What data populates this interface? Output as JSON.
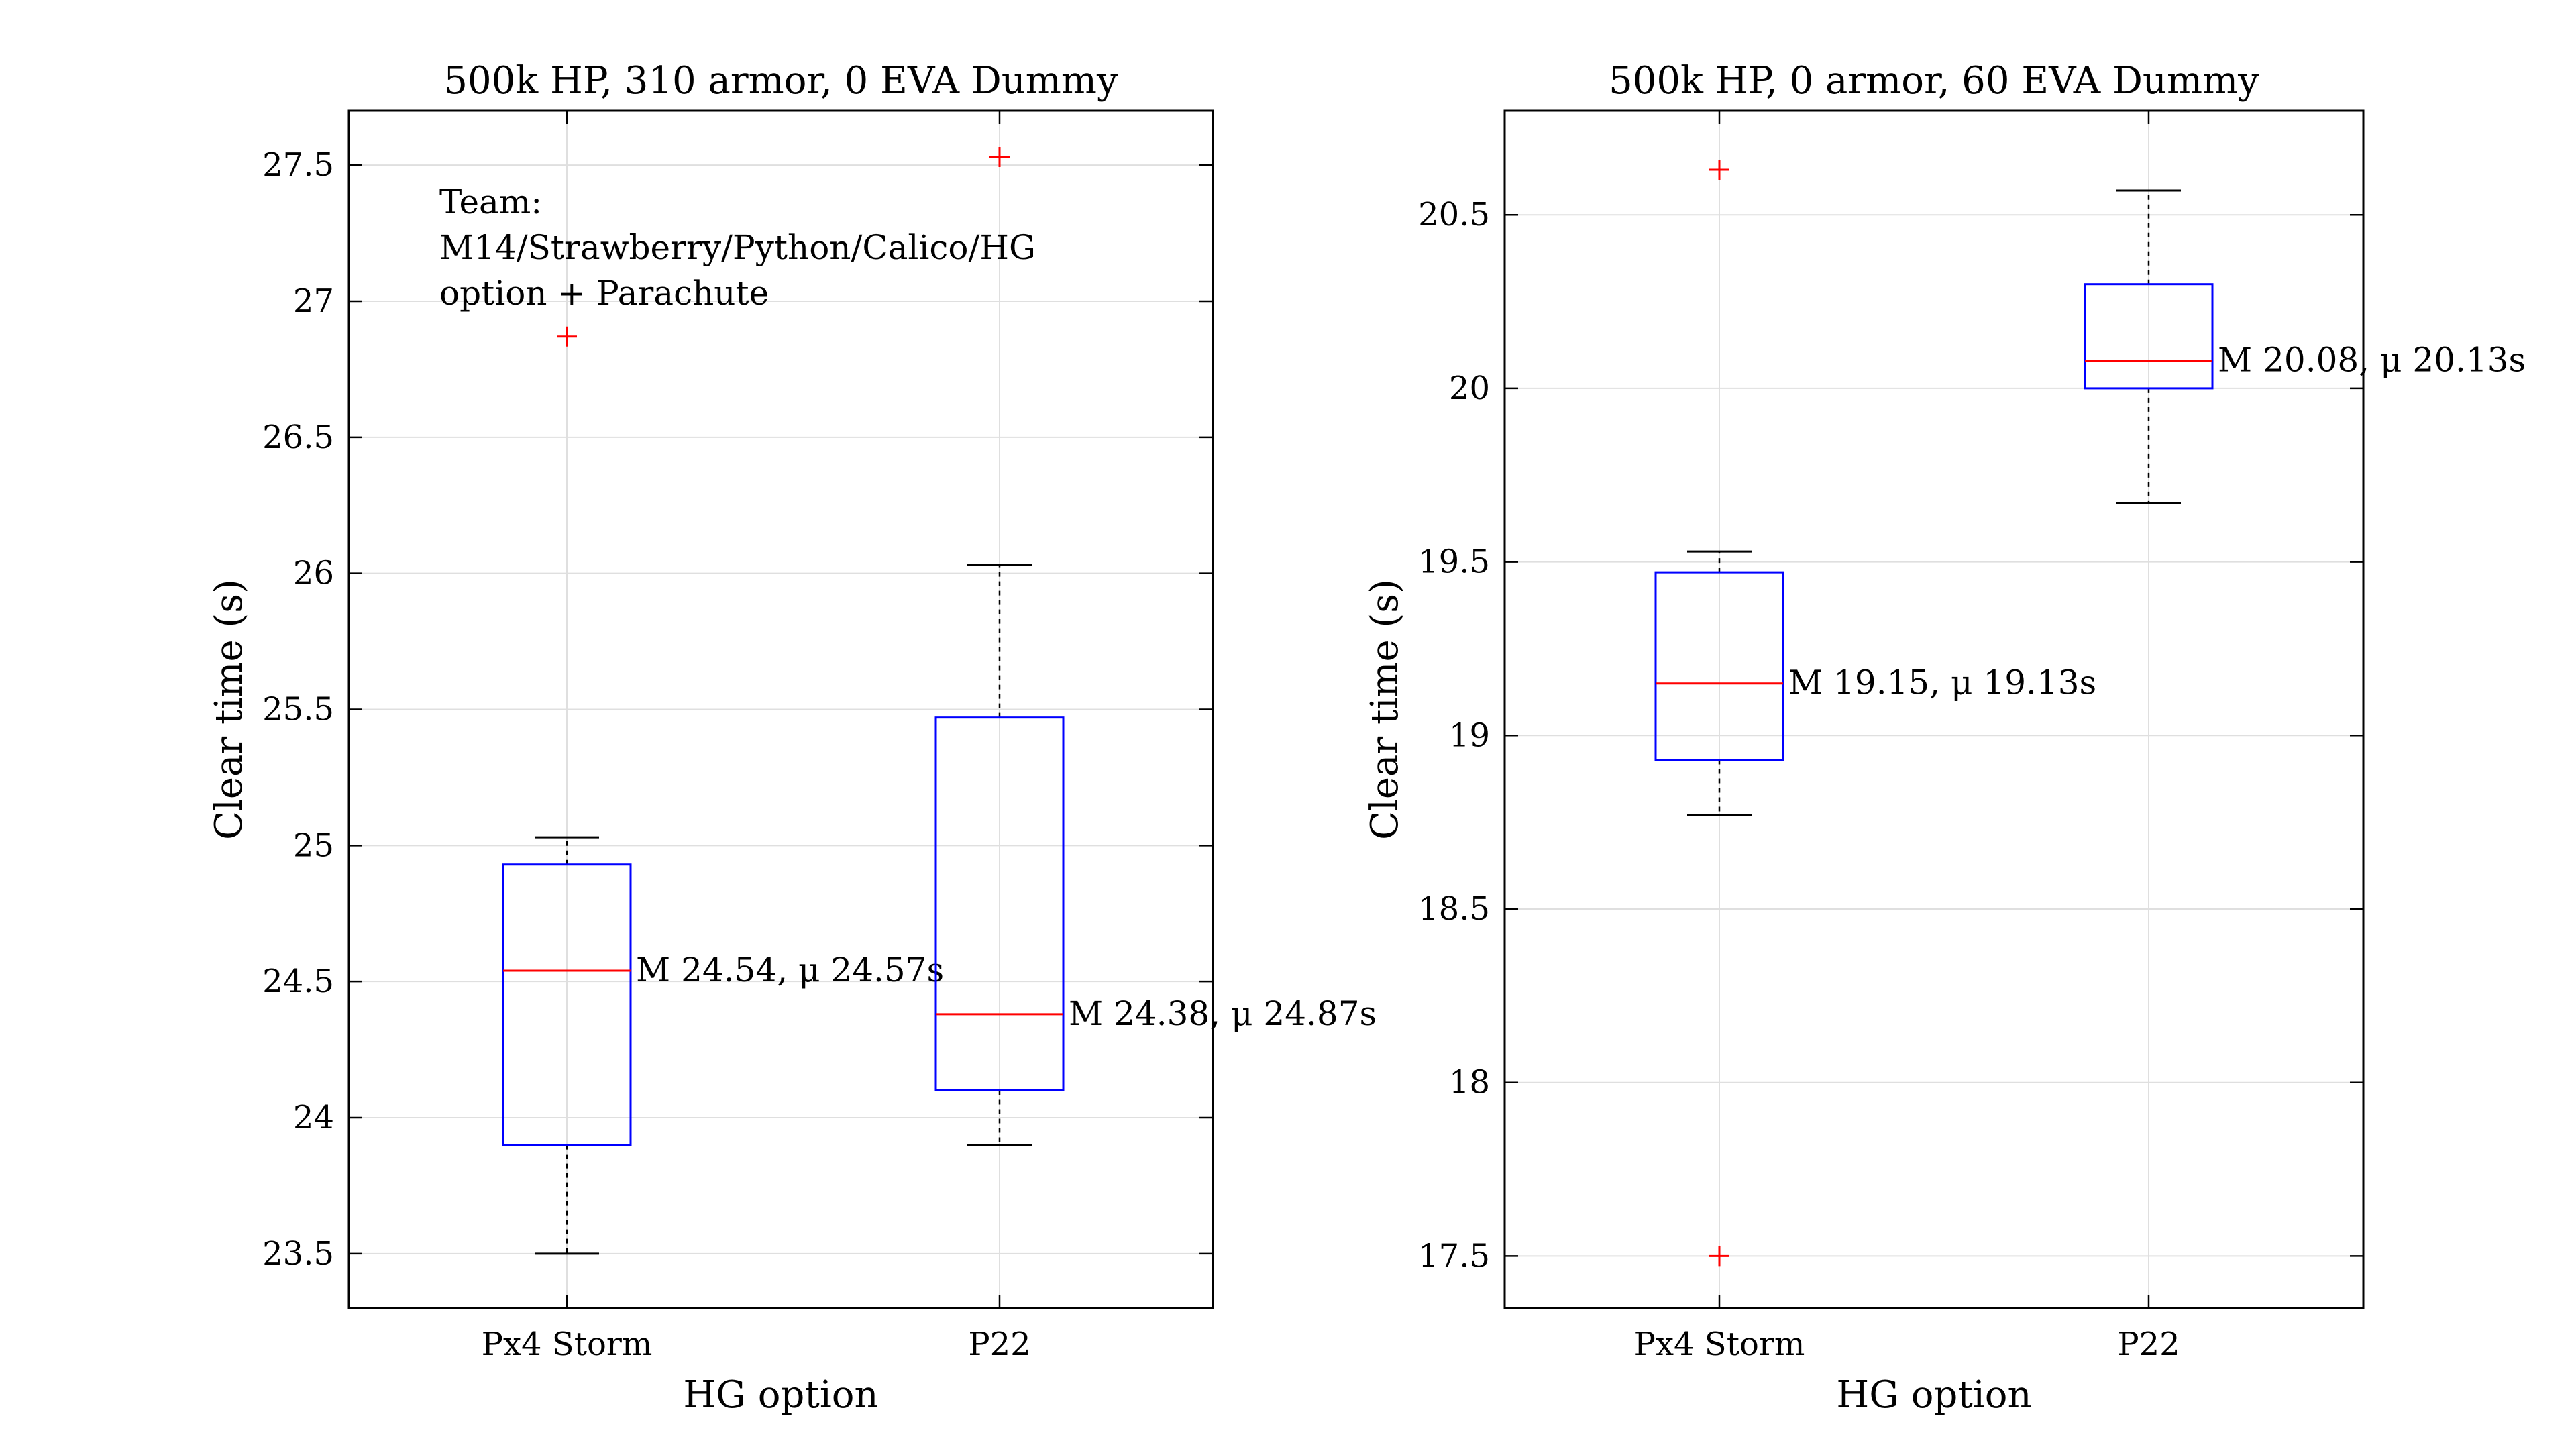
{
  "chart_data": [
    {
      "type": "box",
      "title": "500k HP, 310 armor, 0 EVA Dummy",
      "xlabel": "HG option",
      "ylabel": "Clear time (s)",
      "ylim": [
        23.3,
        27.7
      ],
      "yticks": [
        "23.5",
        "24",
        "24.5",
        "25",
        "25.5",
        "26",
        "26.5",
        "27",
        "27.5"
      ],
      "grid": true,
      "annotation": [
        "Team:",
        "M14/Strawberry/Python/Calico/HG",
        "option + Parachute"
      ],
      "categories": [
        "Px4 Storm",
        "P22"
      ],
      "boxes": [
        {
          "category": "Px4 Storm",
          "whisker_low": 23.5,
          "q1": 23.9,
          "median": 24.54,
          "q3": 24.93,
          "whisker_high": 25.03,
          "outliers": [
            26.87
          ],
          "label": "M 24.54, μ 24.57s"
        },
        {
          "category": "P22",
          "whisker_low": 23.9,
          "q1": 24.1,
          "median": 24.38,
          "q3": 25.47,
          "whisker_high": 26.03,
          "outliers": [
            27.53
          ],
          "label": "M 24.38, μ 24.87s"
        }
      ]
    },
    {
      "type": "box",
      "title": "500k HP, 0 armor, 60 EVA Dummy",
      "xlabel": "HG option",
      "ylabel": "Clear time (s)",
      "ylim": [
        17.35,
        20.8
      ],
      "yticks": [
        "17.5",
        "18",
        "18.5",
        "19",
        "19.5",
        "20",
        "20.5"
      ],
      "grid": true,
      "categories": [
        "Px4 Storm",
        "P22"
      ],
      "boxes": [
        {
          "category": "Px4 Storm",
          "whisker_low": 18.77,
          "q1": 18.93,
          "median": 19.15,
          "q3": 19.47,
          "whisker_high": 19.53,
          "outliers": [
            17.5,
            20.63
          ],
          "label": "M 19.15, μ 19.13s"
        },
        {
          "category": "P22",
          "whisker_low": 19.67,
          "q1": 20.0,
          "median": 20.08,
          "q3": 20.3,
          "whisker_high": 20.57,
          "outliers": [],
          "label": "M 20.08, μ 20.13s"
        }
      ]
    }
  ],
  "colors": {
    "box": "#0000ff",
    "median": "#ff0000",
    "outlier": "#ff0000",
    "whisker": "#000000",
    "grid": "#dfdfdf"
  }
}
